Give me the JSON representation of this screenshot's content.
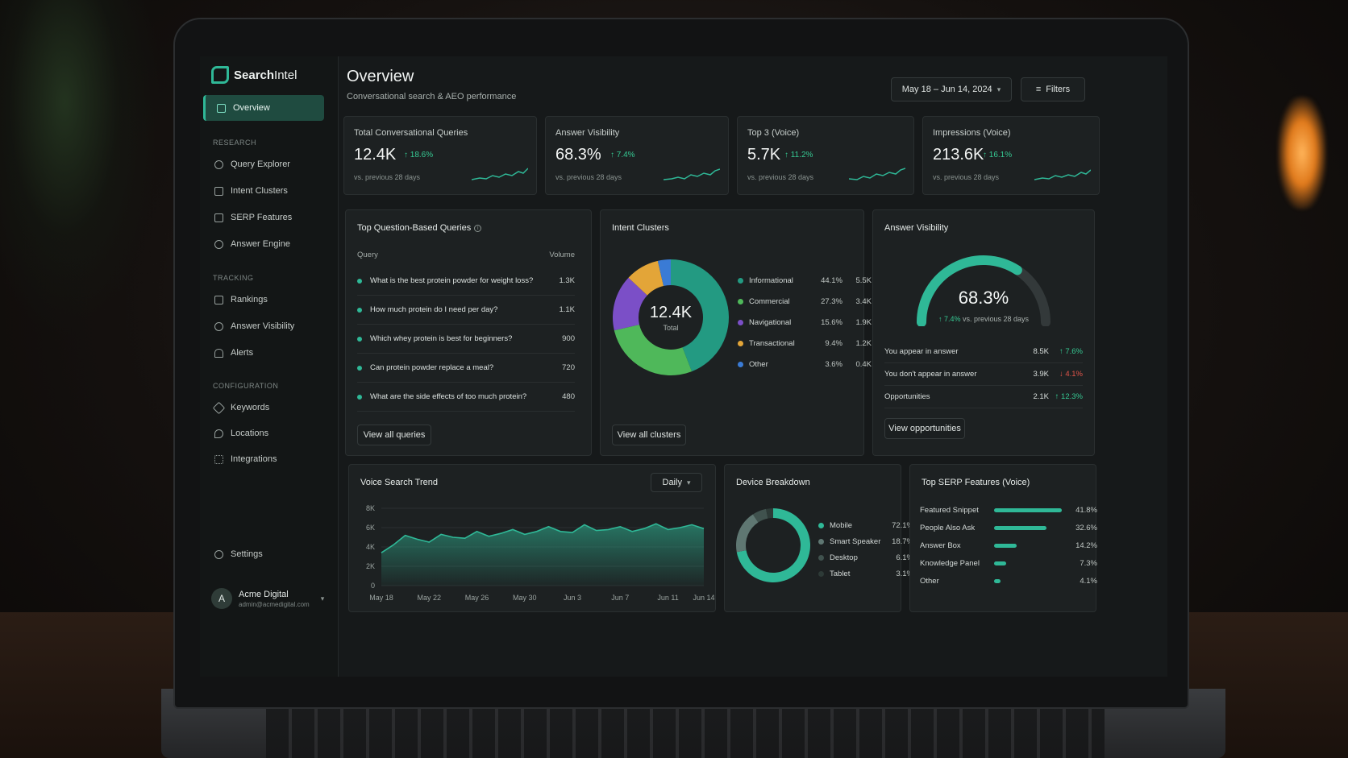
{
  "brand": {
    "name_bold": "Search",
    "name_rest": "Intel"
  },
  "colors": {
    "accent": "#2fb897",
    "up": "#36c993",
    "down": "#e2554a",
    "informational": "#239a82",
    "commercial": "#4fb85a",
    "navigational": "#7b4fc7",
    "transactional": "#e3a538",
    "other": "#3a7bd5"
  },
  "sidebar": {
    "overview": "Overview",
    "research_header": "RESEARCH",
    "research": [
      "Query Explorer",
      "Intent Clusters",
      "SERP Features",
      "Answer Engine"
    ],
    "tracking_header": "TRACKING",
    "tracking": [
      "Rankings",
      "Answer Visibility",
      "Alerts"
    ],
    "config_header": "CONFIGURATION",
    "config": [
      "Keywords",
      "Locations",
      "Integrations"
    ],
    "settings": "Settings",
    "user": {
      "initial": "A",
      "name": "Acme Digital",
      "email": "admin@acmedigital.com"
    }
  },
  "header": {
    "title": "Overview",
    "subtitle": "Conversational search & AEO performance",
    "date_range": "May 18 – Jun 14, 2024",
    "filters": "Filters"
  },
  "kpis": [
    {
      "label": "Total Conversational Queries",
      "value": "12.4K",
      "delta": "↑ 18.6%",
      "note": "vs. previous 28 days"
    },
    {
      "label": "Answer Visibility",
      "value": "68.3%",
      "delta": "↑ 7.4%",
      "note": "vs. previous 28 days"
    },
    {
      "label": "Top 3 (Voice)",
      "value": "5.7K",
      "delta": "↑ 11.2%",
      "note": "vs. previous 28 days"
    },
    {
      "label": "Impressions (Voice)",
      "value": "213.6K",
      "delta": "↑ 16.1%",
      "note": "vs. previous 28 days"
    }
  ],
  "top_queries": {
    "title": "Top Question-Based Queries",
    "info": "i",
    "col_query": "Query",
    "col_volume": "Volume",
    "rows": [
      {
        "q": "What is the best protein powder for weight loss?",
        "v": "1.3K"
      },
      {
        "q": "How much protein do I need per day?",
        "v": "1.1K"
      },
      {
        "q": "Which whey protein is best for beginners?",
        "v": "900"
      },
      {
        "q": "Can protein powder replace a meal?",
        "v": "720"
      },
      {
        "q": "What are the side effects of too much protein?",
        "v": "480"
      }
    ],
    "view_all": "View all queries"
  },
  "intent": {
    "title": "Intent Clusters",
    "center_value": "12.4K",
    "center_label": "Total",
    "rows": [
      {
        "name": "Informational",
        "pct": "44.1%",
        "val": "5.5K"
      },
      {
        "name": "Commercial",
        "pct": "27.3%",
        "val": "3.4K"
      },
      {
        "name": "Navigational",
        "pct": "15.6%",
        "val": "1.9K"
      },
      {
        "name": "Transactional",
        "pct": "9.4%",
        "val": "1.2K"
      },
      {
        "name": "Other",
        "pct": "3.6%",
        "val": "0.4K"
      }
    ],
    "view_all": "View all clusters"
  },
  "answer_visibility": {
    "title": "Answer Visibility",
    "value": "68.3%",
    "gauge_fraction": 0.683,
    "delta": "↑ 7.4%",
    "note": "vs. previous 28 days",
    "rows": [
      {
        "name": "You appear in answer",
        "val": "8.5K",
        "delta": "↑ 7.6%",
        "dir": "up"
      },
      {
        "name": "You don't appear in answer",
        "val": "3.9K",
        "delta": "↓ 4.1%",
        "dir": "down"
      },
      {
        "name": "Opportunities",
        "val": "2.1K",
        "delta": "↑ 12.3%",
        "dir": "up"
      }
    ],
    "view": "View opportunities"
  },
  "voice_trend": {
    "title": "Voice Search Trend",
    "granularity": "Daily"
  },
  "device": {
    "title": "Device Breakdown",
    "rows": [
      {
        "name": "Mobile",
        "pct": "72.1%"
      },
      {
        "name": "Smart Speaker",
        "pct": "18.7%"
      },
      {
        "name": "Desktop",
        "pct": "6.1%"
      },
      {
        "name": "Tablet",
        "pct": "3.1%"
      }
    ]
  },
  "serp": {
    "title": "Top SERP Features (Voice)",
    "rows": [
      {
        "name": "Featured Snippet",
        "pct": "41.8%",
        "value": 41.8
      },
      {
        "name": "People Also Ask",
        "pct": "32.6%",
        "value": 32.6
      },
      {
        "name": "Answer Box",
        "pct": "14.2%",
        "value": 14.2
      },
      {
        "name": "Knowledge Panel",
        "pct": "7.3%",
        "value": 7.3
      },
      {
        "name": "Other",
        "pct": "4.1%",
        "value": 4.1
      }
    ]
  },
  "chart_data": [
    {
      "type": "area",
      "title": "Voice Search Trend",
      "x": [
        "May 18",
        "May 19",
        "May 20",
        "May 21",
        "May 22",
        "May 23",
        "May 24",
        "May 25",
        "May 26",
        "May 27",
        "May 28",
        "May 29",
        "May 30",
        "May 31",
        "Jun 1",
        "Jun 2",
        "Jun 3",
        "Jun 4",
        "Jun 5",
        "Jun 6",
        "Jun 7",
        "Jun 8",
        "Jun 9",
        "Jun 10",
        "Jun 11",
        "Jun 12",
        "Jun 13",
        "Jun 14"
      ],
      "tick_labels": [
        "May 18",
        "May 22",
        "May 26",
        "May 30",
        "Jun 3",
        "Jun 7",
        "Jun 11",
        "Jun 14"
      ],
      "y_ticks": [
        "0",
        "2K",
        "4K",
        "6K",
        "8K"
      ],
      "values": [
        3400,
        4200,
        5200,
        4800,
        4500,
        5300,
        5000,
        4900,
        5600,
        5100,
        5400,
        5800,
        5300,
        5600,
        6100,
        5600,
        5500,
        6300,
        5700,
        5800,
        6100,
        5600,
        5900,
        6400,
        5800,
        6000,
        6300,
        5900
      ],
      "ylim": [
        0,
        8000
      ]
    },
    {
      "type": "pie",
      "title": "Intent Clusters",
      "categories": [
        "Informational",
        "Commercial",
        "Navigational",
        "Transactional",
        "Other"
      ],
      "values": [
        44.1,
        27.3,
        15.6,
        9.4,
        3.6
      ]
    },
    {
      "type": "pie",
      "title": "Device Breakdown",
      "categories": [
        "Mobile",
        "Smart Speaker",
        "Desktop",
        "Tablet"
      ],
      "values": [
        72.1,
        18.7,
        6.1,
        3.1
      ]
    },
    {
      "type": "bar",
      "title": "Top SERP Features (Voice)",
      "categories": [
        "Featured Snippet",
        "People Also Ask",
        "Answer Box",
        "Knowledge Panel",
        "Other"
      ],
      "values": [
        41.8,
        32.6,
        14.2,
        7.3,
        4.1
      ]
    }
  ]
}
